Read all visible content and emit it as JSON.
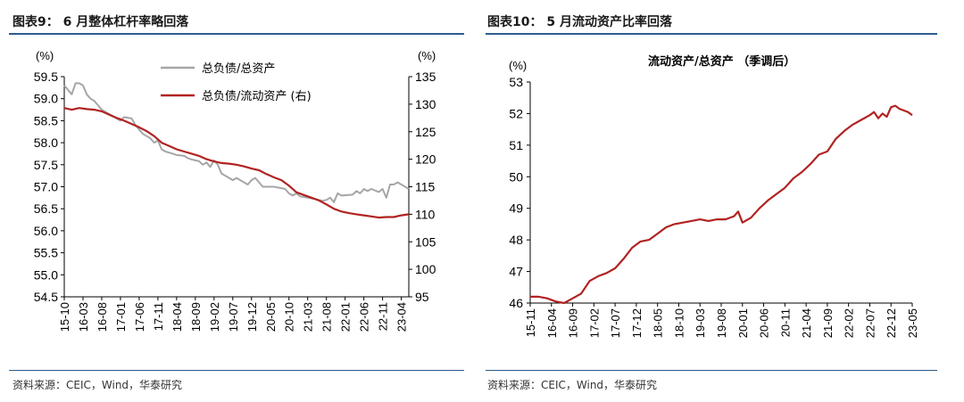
{
  "colors": {
    "gray": "#a6a6a6",
    "red": "#b22222",
    "rule": "#2e5c8a"
  },
  "left": {
    "title": "图表9： 6 月整体杠杆率略回落",
    "source": "资料来源：CEIC，Wind，华泰研究",
    "chart_data": {
      "type": "line",
      "title": "",
      "unit_left": "(%)",
      "unit_right": "(%)",
      "y_left": {
        "min": 54.5,
        "max": 59.5,
        "step": 0.5,
        "ticks": [
          "54.5",
          "55.0",
          "55.5",
          "56.0",
          "56.5",
          "57.0",
          "57.5",
          "58.0",
          "58.5",
          "59.0",
          "59.5"
        ]
      },
      "y_right": {
        "min": 95,
        "max": 135,
        "step": 5,
        "ticks": [
          "95",
          "100",
          "105",
          "110",
          "115",
          "120",
          "125",
          "130",
          "135"
        ]
      },
      "x_range": {
        "start": "2015-10",
        "end": "2023-06"
      },
      "x_ticks": [
        "15-10",
        "16-03",
        "16-08",
        "17-01",
        "17-06",
        "17-11",
        "18-04",
        "18-09",
        "19-02",
        "19-07",
        "19-12",
        "20-05",
        "20-10",
        "21-03",
        "21-08",
        "22-01",
        "22-06",
        "22-11",
        "23-04"
      ],
      "legend_position": "top-center",
      "series": [
        {
          "name": "总负债/总资产",
          "axis": "left",
          "color": "#a6a6a6",
          "points": [
            [
              "2015-10",
              59.3
            ],
            [
              "2015-12",
              59.1
            ],
            [
              "2016-01",
              59.35
            ],
            [
              "2016-02",
              59.35
            ],
            [
              "2016-03",
              59.3
            ],
            [
              "2016-04",
              59.1
            ],
            [
              "2016-05",
              59.0
            ],
            [
              "2016-06",
              58.95
            ],
            [
              "2016-07",
              58.85
            ],
            [
              "2016-08",
              58.75
            ],
            [
              "2016-10",
              58.65
            ],
            [
              "2016-12",
              58.55
            ],
            [
              "2017-01",
              58.5
            ],
            [
              "2017-02",
              58.58
            ],
            [
              "2017-04",
              58.55
            ],
            [
              "2017-05",
              58.4
            ],
            [
              "2017-06",
              58.3
            ],
            [
              "2017-07",
              58.2
            ],
            [
              "2017-09",
              58.1
            ],
            [
              "2017-10",
              58.0
            ],
            [
              "2017-11",
              58.05
            ],
            [
              "2017-12",
              57.85
            ],
            [
              "2018-01",
              57.8
            ],
            [
              "2018-03",
              57.75
            ],
            [
              "2018-04",
              57.72
            ],
            [
              "2018-06",
              57.7
            ],
            [
              "2018-07",
              57.65
            ],
            [
              "2018-08",
              57.62
            ],
            [
              "2018-09",
              57.6
            ],
            [
              "2018-10",
              57.58
            ],
            [
              "2018-11",
              57.5
            ],
            [
              "2018-12",
              57.55
            ],
            [
              "2019-01",
              57.45
            ],
            [
              "2019-02",
              57.6
            ],
            [
              "2019-03",
              57.5
            ],
            [
              "2019-04",
              57.3
            ],
            [
              "2019-05",
              57.25
            ],
            [
              "2019-06",
              57.2
            ],
            [
              "2019-07",
              57.15
            ],
            [
              "2019-08",
              57.2
            ],
            [
              "2019-09",
              57.15
            ],
            [
              "2019-10",
              57.1
            ],
            [
              "2019-11",
              57.05
            ],
            [
              "2019-12",
              57.15
            ],
            [
              "2020-01",
              57.2
            ],
            [
              "2020-03",
              57.0
            ],
            [
              "2020-06",
              57.0
            ],
            [
              "2020-09",
              56.95
            ],
            [
              "2020-10",
              56.85
            ],
            [
              "2020-11",
              56.8
            ],
            [
              "2020-12",
              56.85
            ],
            [
              "2021-01",
              56.78
            ],
            [
              "2021-03",
              56.75
            ],
            [
              "2021-05",
              56.72
            ],
            [
              "2021-07",
              56.68
            ],
            [
              "2021-08",
              56.7
            ],
            [
              "2021-09",
              56.75
            ],
            [
              "2021-10",
              56.65
            ],
            [
              "2021-11",
              56.85
            ],
            [
              "2021-12",
              56.8
            ],
            [
              "2022-03",
              56.82
            ],
            [
              "2022-04",
              56.9
            ],
            [
              "2022-05",
              56.85
            ],
            [
              "2022-06",
              56.95
            ],
            [
              "2022-07",
              56.9
            ],
            [
              "2022-08",
              56.95
            ],
            [
              "2022-10",
              56.88
            ],
            [
              "2022-11",
              56.95
            ],
            [
              "2022-12",
              56.75
            ],
            [
              "2023-01",
              57.05
            ],
            [
              "2023-02",
              57.05
            ],
            [
              "2023-03",
              57.1
            ],
            [
              "2023-04",
              57.05
            ],
            [
              "2023-05",
              57.0
            ],
            [
              "2023-06",
              56.95
            ]
          ]
        },
        {
          "name": "总负债/流动资产 (右)",
          "axis": "right",
          "color": "#b22222",
          "points": [
            [
              "2015-10",
              129.3
            ],
            [
              "2015-12",
              129.0
            ],
            [
              "2016-02",
              129.3
            ],
            [
              "2016-04",
              129.1
            ],
            [
              "2016-06",
              129.0
            ],
            [
              "2016-08",
              128.7
            ],
            [
              "2016-10",
              128.1
            ],
            [
              "2016-12",
              127.5
            ],
            [
              "2017-02",
              127.0
            ],
            [
              "2017-04",
              126.4
            ],
            [
              "2017-06",
              125.8
            ],
            [
              "2017-08",
              125.1
            ],
            [
              "2017-10",
              124.2
            ],
            [
              "2017-12",
              123.0
            ],
            [
              "2018-02",
              122.4
            ],
            [
              "2018-04",
              121.8
            ],
            [
              "2018-06",
              121.4
            ],
            [
              "2018-08",
              121.0
            ],
            [
              "2018-10",
              120.6
            ],
            [
              "2018-12",
              120.0
            ],
            [
              "2019-02",
              119.6
            ],
            [
              "2019-04",
              119.3
            ],
            [
              "2019-06",
              119.2
            ],
            [
              "2019-08",
              119.0
            ],
            [
              "2019-10",
              118.7
            ],
            [
              "2019-12",
              118.3
            ],
            [
              "2020-02",
              118.0
            ],
            [
              "2020-04",
              117.3
            ],
            [
              "2020-06",
              116.7
            ],
            [
              "2020-08",
              116.2
            ],
            [
              "2020-10",
              115.2
            ],
            [
              "2020-12",
              114.0
            ],
            [
              "2021-02",
              113.5
            ],
            [
              "2021-04",
              113.0
            ],
            [
              "2021-06",
              112.5
            ],
            [
              "2021-08",
              111.8
            ],
            [
              "2021-10",
              111.0
            ],
            [
              "2021-12",
              110.5
            ],
            [
              "2022-02",
              110.2
            ],
            [
              "2022-04",
              110.0
            ],
            [
              "2022-06",
              109.8
            ],
            [
              "2022-08",
              109.6
            ],
            [
              "2022-10",
              109.4
            ],
            [
              "2022-12",
              109.5
            ],
            [
              "2023-02",
              109.5
            ],
            [
              "2023-04",
              109.8
            ],
            [
              "2023-06",
              110.0
            ]
          ]
        }
      ]
    }
  },
  "right": {
    "title": "图表10： 5 月流动资产比率回落",
    "source": "资料来源：CEIC，Wind，华泰研究",
    "chart_data": {
      "type": "line",
      "title": "流动资产/总资产 （季调后）",
      "unit": "(%)",
      "y_axis": {
        "min": 46,
        "max": 53,
        "step": 1,
        "ticks": [
          "46",
          "47",
          "48",
          "49",
          "50",
          "51",
          "52",
          "53"
        ]
      },
      "x_range": {
        "start": "2015-11",
        "end": "2023-05"
      },
      "x_ticks": [
        "15-11",
        "16-04",
        "16-09",
        "17-02",
        "17-07",
        "17-12",
        "18-05",
        "18-10",
        "19-03",
        "19-08",
        "20-01",
        "20-06",
        "20-11",
        "21-04",
        "21-09",
        "22-02",
        "22-07",
        "22-12",
        "23-05"
      ],
      "series": [
        {
          "name": "流动资产/总资产",
          "color": "#b22222",
          "points": [
            [
              "2015-11",
              46.2
            ],
            [
              "2016-01",
              46.2
            ],
            [
              "2016-03",
              46.15
            ],
            [
              "2016-05",
              46.05
            ],
            [
              "2016-07",
              46.0
            ],
            [
              "2016-09",
              46.15
            ],
            [
              "2016-11",
              46.3
            ],
            [
              "2017-01",
              46.7
            ],
            [
              "2017-03",
              46.85
            ],
            [
              "2017-05",
              46.95
            ],
            [
              "2017-07",
              47.1
            ],
            [
              "2017-09",
              47.4
            ],
            [
              "2017-11",
              47.75
            ],
            [
              "2018-01",
              47.95
            ],
            [
              "2018-03",
              48.0
            ],
            [
              "2018-05",
              48.2
            ],
            [
              "2018-07",
              48.4
            ],
            [
              "2018-09",
              48.5
            ],
            [
              "2018-11",
              48.55
            ],
            [
              "2019-01",
              48.6
            ],
            [
              "2019-03",
              48.65
            ],
            [
              "2019-05",
              48.6
            ],
            [
              "2019-07",
              48.65
            ],
            [
              "2019-09",
              48.65
            ],
            [
              "2019-11",
              48.75
            ],
            [
              "2019-12",
              48.9
            ],
            [
              "2020-01",
              48.55
            ],
            [
              "2020-03",
              48.7
            ],
            [
              "2020-05",
              49.0
            ],
            [
              "2020-07",
              49.25
            ],
            [
              "2020-09",
              49.45
            ],
            [
              "2020-11",
              49.65
            ],
            [
              "2021-01",
              49.95
            ],
            [
              "2021-03",
              50.15
            ],
            [
              "2021-05",
              50.4
            ],
            [
              "2021-07",
              50.7
            ],
            [
              "2021-09",
              50.8
            ],
            [
              "2021-11",
              51.2
            ],
            [
              "2022-01",
              51.45
            ],
            [
              "2022-03",
              51.65
            ],
            [
              "2022-05",
              51.8
            ],
            [
              "2022-07",
              51.95
            ],
            [
              "2022-08",
              52.05
            ],
            [
              "2022-09",
              51.85
            ],
            [
              "2022-10",
              52.0
            ],
            [
              "2022-11",
              51.9
            ],
            [
              "2022-12",
              52.2
            ],
            [
              "2023-01",
              52.25
            ],
            [
              "2023-02",
              52.15
            ],
            [
              "2023-03",
              52.1
            ],
            [
              "2023-04",
              52.05
            ],
            [
              "2023-05",
              51.95
            ]
          ]
        }
      ]
    }
  }
}
